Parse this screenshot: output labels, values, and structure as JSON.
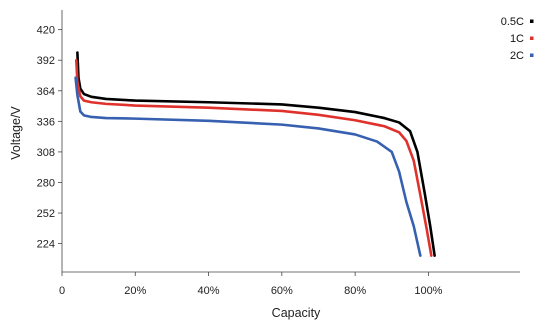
{
  "chart_data": {
    "type": "line",
    "xlabel": "Capacity",
    "ylabel": "Voltage/V",
    "xlim": [
      0,
      125
    ],
    "ylim": [
      198,
      438
    ],
    "x_ticks": [
      {
        "value": 0,
        "label": "0"
      },
      {
        "value": 20,
        "label": "20%"
      },
      {
        "value": 40,
        "label": "40%"
      },
      {
        "value": 60,
        "label": "60%"
      },
      {
        "value": 80,
        "label": "80%"
      },
      {
        "value": 100,
        "label": "100%"
      }
    ],
    "y_ticks": [
      {
        "value": 224,
        "label": "224"
      },
      {
        "value": 252,
        "label": "252"
      },
      {
        "value": 280,
        "label": "280"
      },
      {
        "value": 308,
        "label": "308"
      },
      {
        "value": 336,
        "label": "336"
      },
      {
        "value": 364,
        "label": "364"
      },
      {
        "value": 392,
        "label": "392"
      },
      {
        "value": 420,
        "label": "420"
      }
    ],
    "grid": false,
    "legend_position": "top-right",
    "series": [
      {
        "name": "0.5C",
        "color": "#000000",
        "points": [
          [
            4.2,
            399
          ],
          [
            4.5,
            376
          ],
          [
            5,
            366
          ],
          [
            6,
            361
          ],
          [
            8,
            358.5
          ],
          [
            12,
            356.5
          ],
          [
            20,
            355
          ],
          [
            40,
            353.5
          ],
          [
            60,
            351.5
          ],
          [
            70,
            348.5
          ],
          [
            80,
            344.5
          ],
          [
            88,
            339
          ],
          [
            92,
            335
          ],
          [
            95,
            327
          ],
          [
            97,
            308
          ],
          [
            99,
            270
          ],
          [
            100.5,
            240
          ],
          [
            101.7,
            213
          ]
        ]
      },
      {
        "name": "1C",
        "color": "#e0322c",
        "points": [
          [
            3.9,
            392
          ],
          [
            4.2,
            372
          ],
          [
            5,
            359
          ],
          [
            6,
            355
          ],
          [
            8,
            353.5
          ],
          [
            12,
            352
          ],
          [
            20,
            350.5
          ],
          [
            40,
            348.5
          ],
          [
            60,
            345.5
          ],
          [
            70,
            342
          ],
          [
            80,
            337
          ],
          [
            88,
            331.5
          ],
          [
            92,
            326
          ],
          [
            94,
            318
          ],
          [
            96,
            300
          ],
          [
            98,
            265
          ],
          [
            99.5,
            238
          ],
          [
            100.8,
            213
          ]
        ]
      },
      {
        "name": "2C",
        "color": "#3760b0",
        "points": [
          [
            3.7,
            376
          ],
          [
            4.2,
            360
          ],
          [
            5,
            345
          ],
          [
            6,
            341.5
          ],
          [
            8,
            340
          ],
          [
            12,
            339
          ],
          [
            20,
            338.5
          ],
          [
            40,
            336.5
          ],
          [
            60,
            333
          ],
          [
            70,
            329.5
          ],
          [
            80,
            324
          ],
          [
            86,
            317.5
          ],
          [
            90,
            308
          ],
          [
            92,
            290
          ],
          [
            94,
            262
          ],
          [
            96,
            240
          ],
          [
            97.8,
            213
          ]
        ]
      }
    ]
  }
}
